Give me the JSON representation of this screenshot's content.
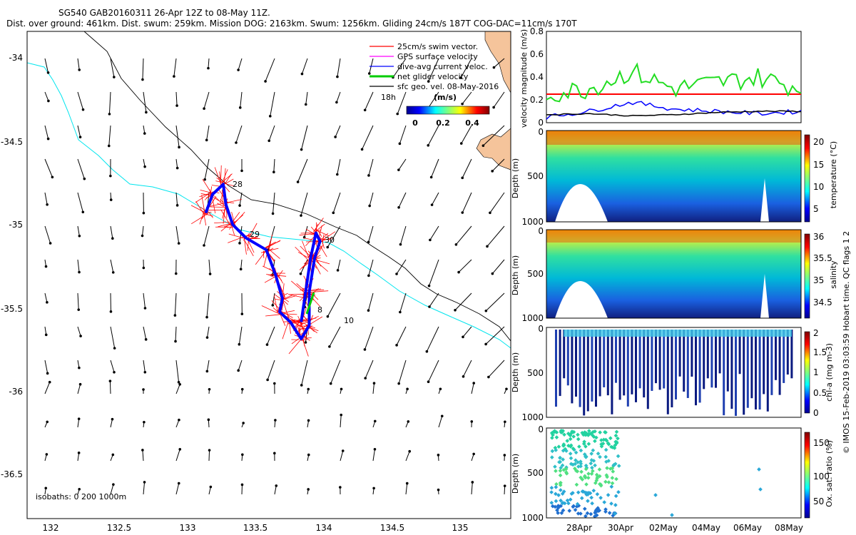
{
  "header": {
    "line1": "SG540 GAB20160311 26-Apr 12Z to 08-May 11Z.",
    "line2": "Dist. over ground: 461km. Dist. swum: 259km. Mission DOG: 2163km. Swum: 1256km. Gliding 24cm/s 187T COG-DAC=11cm/s 170T"
  },
  "map": {
    "x_ticks": [
      "132",
      "132.5",
      "133",
      "133.5",
      "134",
      "134.5",
      "135"
    ],
    "y_ticks": [
      "-34",
      "-34.5",
      "-35",
      "-35.5",
      "-36",
      "-36.5"
    ],
    "legend": [
      {
        "label": "25cm/s swim vector.",
        "color": "#ff0000"
      },
      {
        "label": "GPS surface velocity",
        "color": "#ff00ff"
      },
      {
        "label": "dive-avg current veloc.",
        "color": "#0000ff"
      },
      {
        "label": "net glider velocity",
        "color": "#00cc00"
      },
      {
        "label": "sfc geo. vel. 08-May-2016",
        "color": "#000000"
      }
    ],
    "legend_extra": "18h",
    "colorbar_label": "(m/s)",
    "colorbar_ticks": [
      "0",
      "0.2",
      "0.4"
    ],
    "isobaths_text": "isobaths: 0   200  1000m",
    "day_labels": [
      "28",
      "29",
      "30",
      "10",
      "8"
    ]
  },
  "panels": {
    "velocity": {
      "ylabel": "velocity magnitude (m/s)",
      "y_ticks": [
        "0",
        "0.2",
        "0.4",
        "0.6",
        "0.8"
      ]
    },
    "temperature": {
      "ylabel": "Depth (m)",
      "cbar_label": "temperature (°C)",
      "cbar_ticks": [
        "5",
        "10",
        "15",
        "20"
      ]
    },
    "salinity": {
      "ylabel": "Depth (m)",
      "cbar_label": "salinity",
      "cbar_ticks": [
        "34.5",
        "35",
        "35.5",
        "36"
      ]
    },
    "chla": {
      "ylabel": "Depth (m)",
      "cbar_label": "chl-a (mg m-3)",
      "cbar_ticks": [
        "0",
        "0.5",
        "1",
        "1.5",
        "2"
      ]
    },
    "oxygen": {
      "ylabel": "Depth (m)",
      "cbar_label": "Ox. sat. ratio (%)",
      "cbar_ticks": [
        "50",
        "100",
        "150"
      ]
    },
    "depth_ticks": [
      "0",
      "500",
      "1000"
    ],
    "x_ticks": [
      "28Apr",
      "30Apr",
      "02May",
      "04May",
      "06May",
      "08May"
    ],
    "credit": "© IMOS 15-Feb-2019 03:03:59 Hobart time. QC flags 1  2"
  },
  "colors": {
    "red": "#ff0000",
    "green": "#22dd22",
    "blue": "#0000ff",
    "coast": "#00e5ee",
    "land": "#f5c49b"
  },
  "chart_data": [
    {
      "type": "scatter",
      "kind": "glider track map with velocity vectors",
      "xlim": [
        131.82,
        135.42
      ],
      "ylim": [
        -36.75,
        -33.85
      ],
      "track": [
        [
          133.15,
          -34.93
        ],
        [
          133.2,
          -34.82
        ],
        [
          133.28,
          -34.76
        ],
        [
          133.3,
          -34.88
        ],
        [
          133.35,
          -35.0
        ],
        [
          133.45,
          -35.08
        ],
        [
          133.6,
          -35.15
        ],
        [
          133.67,
          -35.3
        ],
        [
          133.72,
          -35.44
        ],
        [
          133.7,
          -35.52
        ],
        [
          133.78,
          -35.58
        ],
        [
          133.86,
          -35.68
        ],
        [
          133.92,
          -35.6
        ],
        [
          133.92,
          -35.4
        ],
        [
          133.96,
          -35.2
        ],
        [
          134.0,
          -35.1
        ],
        [
          133.97,
          -35.05
        ],
        [
          133.93,
          -35.2
        ],
        [
          133.89,
          -35.42
        ],
        [
          133.86,
          -35.58
        ]
      ]
    },
    {
      "type": "line",
      "x": [
        "26Apr",
        "28Apr",
        "30Apr",
        "02May",
        "04May",
        "06May",
        "08May"
      ],
      "ylim": [
        0,
        0.8
      ],
      "series": [
        {
          "values": [
            0.25,
            0.25,
            0.25,
            0.25,
            0.25,
            0.25,
            0.25
          ]
        },
        {
          "values": [
            0.25,
            0.3,
            0.45,
            0.3,
            0.35,
            0.4,
            0.3
          ]
        },
        {
          "values": [
            0.05,
            0.1,
            0.18,
            0.12,
            0.1,
            0.08,
            0.1
          ]
        },
        {
          "values": [
            0.07,
            0.08,
            0.06,
            0.07,
            0.09,
            0.1,
            0.1
          ]
        }
      ]
    },
    {
      "type": "heatmap",
      "variable": "temperature (°C)",
      "range": [
        4,
        21
      ],
      "ylim": [
        1000,
        0
      ]
    },
    {
      "type": "heatmap",
      "variable": "salinity",
      "range": [
        34.3,
        36
      ],
      "ylim": [
        1000,
        0
      ]
    },
    {
      "type": "heatmap",
      "variable": "chl-a (mg m-3)",
      "range": [
        0,
        2
      ],
      "ylim": [
        1000,
        0
      ]
    },
    {
      "type": "scatter",
      "variable": "Ox. sat. ratio (%)",
      "range": [
        20,
        170
      ],
      "ylim": [
        1000,
        0
      ]
    }
  ]
}
